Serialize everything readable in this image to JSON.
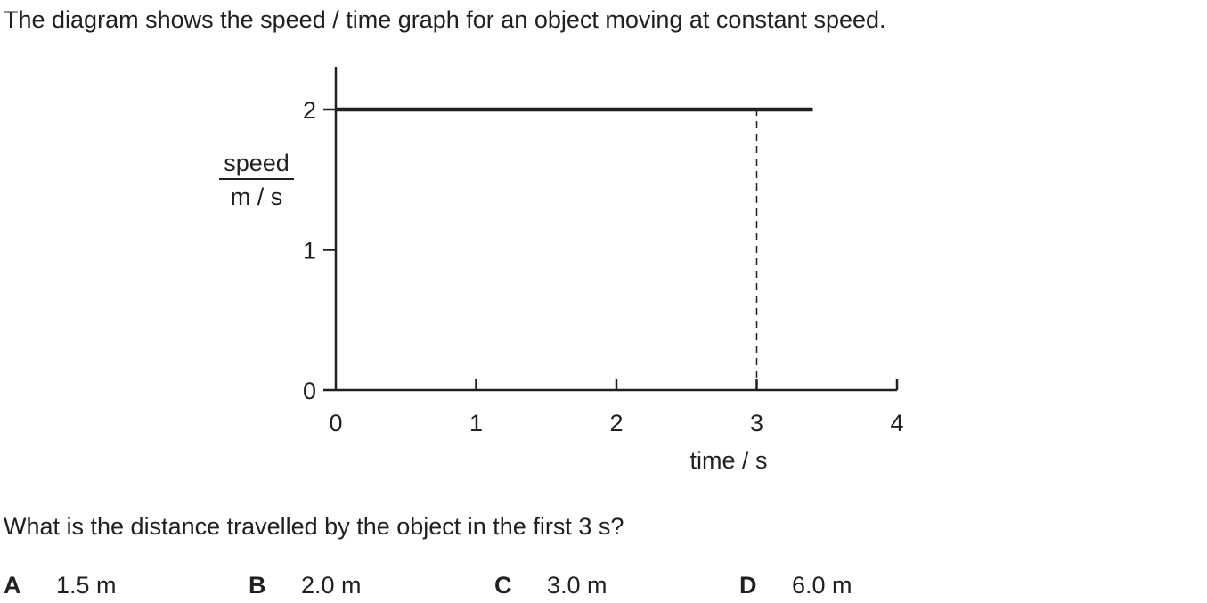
{
  "question": {
    "intro": "The diagram shows the speed / time graph for an object moving at constant speed.",
    "prompt": "What is the distance travelled by the object in the first 3 s?"
  },
  "options": [
    {
      "letter": "A",
      "text": "1.5 m"
    },
    {
      "letter": "B",
      "text": "2.0 m"
    },
    {
      "letter": "C",
      "text": "3.0 m"
    },
    {
      "letter": "D",
      "text": "6.0 m"
    }
  ],
  "chart_data": {
    "type": "line",
    "title": "",
    "xlabel": "time / s",
    "ylabel_top": "speed",
    "ylabel_bottom": "m / s",
    "xlim": [
      0,
      4
    ],
    "ylim": [
      0,
      2
    ],
    "x_ticks": [
      "0",
      "1",
      "2",
      "3",
      "4"
    ],
    "y_ticks": [
      "0",
      "1",
      "2"
    ],
    "series": [
      {
        "x": [
          0,
          3.4
        ],
        "y": [
          2,
          2
        ]
      }
    ],
    "reference_line": {
      "x": 3,
      "y_from": 0,
      "y_to": 2,
      "style": "dashed"
    },
    "grid": false,
    "colors": {
      "ink": "#231f20"
    }
  }
}
